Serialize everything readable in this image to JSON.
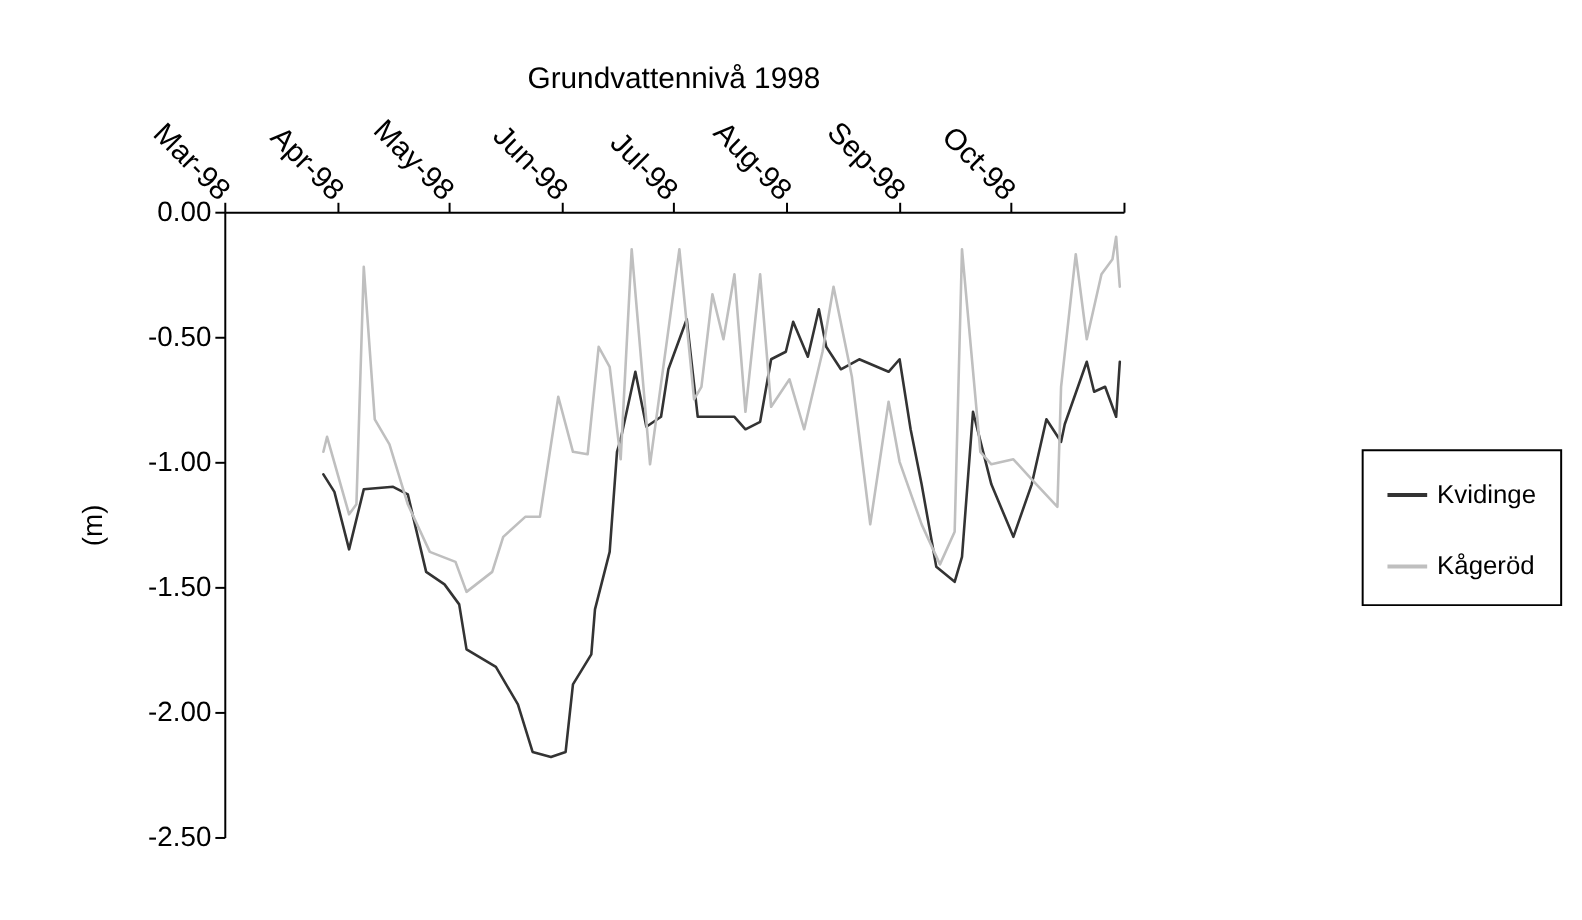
{
  "chart_data": {
    "type": "line",
    "title": "Grundvattennivå 1998",
    "ylabel": "(m)",
    "xlim": [
      "1998-03-01",
      "1998-11-01"
    ],
    "xticks": [
      {
        "value": "1998-03-01",
        "label": "Mar-98"
      },
      {
        "value": "1998-04-01",
        "label": "Apr-98"
      },
      {
        "value": "1998-05-01",
        "label": "May-98"
      },
      {
        "value": "1998-06-01",
        "label": "Jun-98"
      },
      {
        "value": "1998-07-01",
        "label": "Jul-98"
      },
      {
        "value": "1998-08-01",
        "label": "Aug-98"
      },
      {
        "value": "1998-09-01",
        "label": "Sep-98"
      },
      {
        "value": "1998-10-01",
        "label": "Oct-98"
      },
      {
        "value": "1998-11-01",
        "label": null
      }
    ],
    "ylim": [
      -2.5,
      0
    ],
    "yticks": [
      {
        "value": 0,
        "label": "0.00"
      },
      {
        "value": -0.5,
        "label": "-0.50"
      },
      {
        "value": -1,
        "label": "-1.00"
      },
      {
        "value": -1.5,
        "label": "-1.50"
      },
      {
        "value": -2,
        "label": "-2.00"
      },
      {
        "value": -2.5,
        "label": "-2.50"
      }
    ],
    "grid": false,
    "legend": "right",
    "marker": "none",
    "line_style": "solid",
    "series": [
      {
        "name": "Kvidinge",
        "color": "#333333",
        "x": [
          "1998-03-28",
          "1998-03-31",
          "1998-04-04",
          "1998-04-08",
          "1998-04-16",
          "1998-04-20",
          "1998-04-25",
          "1998-04-30",
          "1998-05-04",
          "1998-05-06",
          "1998-05-14",
          "1998-05-20",
          "1998-05-24",
          "1998-05-29",
          "1998-06-02",
          "1998-06-04",
          "1998-06-09",
          "1998-06-10",
          "1998-06-14",
          "1998-06-16",
          "1998-06-17",
          "1998-06-21",
          "1998-06-24",
          "1998-06-28",
          "1998-06-30",
          "1998-07-05",
          "1998-07-08",
          "1998-07-18",
          "1998-07-21",
          "1998-07-25",
          "1998-07-28",
          "1998-08-01",
          "1998-08-03",
          "1998-08-07",
          "1998-08-10",
          "1998-08-12",
          "1998-08-16",
          "1998-08-21",
          "1998-08-29",
          "1998-09-01",
          "1998-09-04",
          "1998-09-07",
          "1998-09-11",
          "1998-09-16",
          "1998-09-18",
          "1998-09-21",
          "1998-09-26",
          "1998-10-02",
          "1998-10-07",
          "1998-10-11",
          "1998-10-15",
          "1998-10-16",
          "1998-10-22",
          "1998-10-24",
          "1998-10-27",
          "1998-10-30",
          "1998-10-31"
        ],
        "values": [
          -1.05,
          -1.12,
          -1.35,
          -1.11,
          -1.1,
          -1.13,
          -1.44,
          -1.49,
          -1.57,
          -1.75,
          -1.82,
          -1.97,
          -2.16,
          -2.18,
          -2.16,
          -1.89,
          -1.77,
          -1.59,
          -1.36,
          -0.96,
          -0.91,
          -0.64,
          -0.86,
          -0.82,
          -0.63,
          -0.43,
          -0.82,
          -0.82,
          -0.87,
          -0.84,
          -0.59,
          -0.56,
          -0.44,
          -0.58,
          -0.39,
          -0.54,
          -0.63,
          -0.59,
          -0.64,
          -0.59,
          -0.87,
          -1.09,
          -1.42,
          -1.48,
          -1.38,
          -0.8,
          -1.09,
          -1.3,
          -1.09,
          -0.83,
          -0.92,
          -0.85,
          -0.6,
          -0.72,
          -0.7,
          -0.82,
          -0.6
        ]
      },
      {
        "name": "Kågeröd",
        "color": "#bfbfbf",
        "x": [
          "1998-03-28",
          "1998-03-29",
          "1998-04-04",
          "1998-04-06",
          "1998-04-08",
          "1998-04-11",
          "1998-04-15",
          "1998-04-20",
          "1998-04-26",
          "1998-05-03",
          "1998-05-06",
          "1998-05-13",
          "1998-05-16",
          "1998-05-22",
          "1998-05-26",
          "1998-05-31",
          "1998-06-04",
          "1998-06-08",
          "1998-06-11",
          "1998-06-14",
          "1998-06-17",
          "1998-06-20",
          "1998-06-25",
          "1998-07-03",
          "1998-07-07",
          "1998-07-09",
          "1998-07-12",
          "1998-07-15",
          "1998-07-18",
          "1998-07-21",
          "1998-07-25",
          "1998-07-28",
          "1998-08-02",
          "1998-08-06",
          "1998-08-11",
          "1998-08-14",
          "1998-08-19",
          "1998-08-24",
          "1998-08-29",
          "1998-09-01",
          "1998-09-07",
          "1998-09-12",
          "1998-09-16",
          "1998-09-18",
          "1998-09-23",
          "1998-09-26",
          "1998-10-02",
          "1998-10-07",
          "1998-10-14",
          "1998-10-15",
          "1998-10-19",
          "1998-10-22",
          "1998-10-26",
          "1998-10-29",
          "1998-10-30",
          "1998-10-31"
        ],
        "values": [
          -0.96,
          -0.9,
          -1.21,
          -1.17,
          -0.22,
          -0.83,
          -0.93,
          -1.17,
          -1.36,
          -1.4,
          -1.52,
          -1.44,
          -1.3,
          -1.22,
          -1.22,
          -0.74,
          -0.96,
          -0.97,
          -0.54,
          -0.62,
          -0.99,
          -0.15,
          -1.01,
          -0.15,
          -0.75,
          -0.7,
          -0.33,
          -0.51,
          -0.25,
          -0.8,
          -0.25,
          -0.78,
          -0.67,
          -0.87,
          -0.56,
          -0.3,
          -0.66,
          -1.25,
          -0.76,
          -1.0,
          -1.25,
          -1.41,
          -1.28,
          -0.15,
          -0.96,
          -1.01,
          -0.99,
          -1.07,
          -1.18,
          -0.7,
          -0.17,
          -0.51,
          -0.25,
          -0.19,
          -0.1,
          -0.3
        ]
      }
    ]
  }
}
